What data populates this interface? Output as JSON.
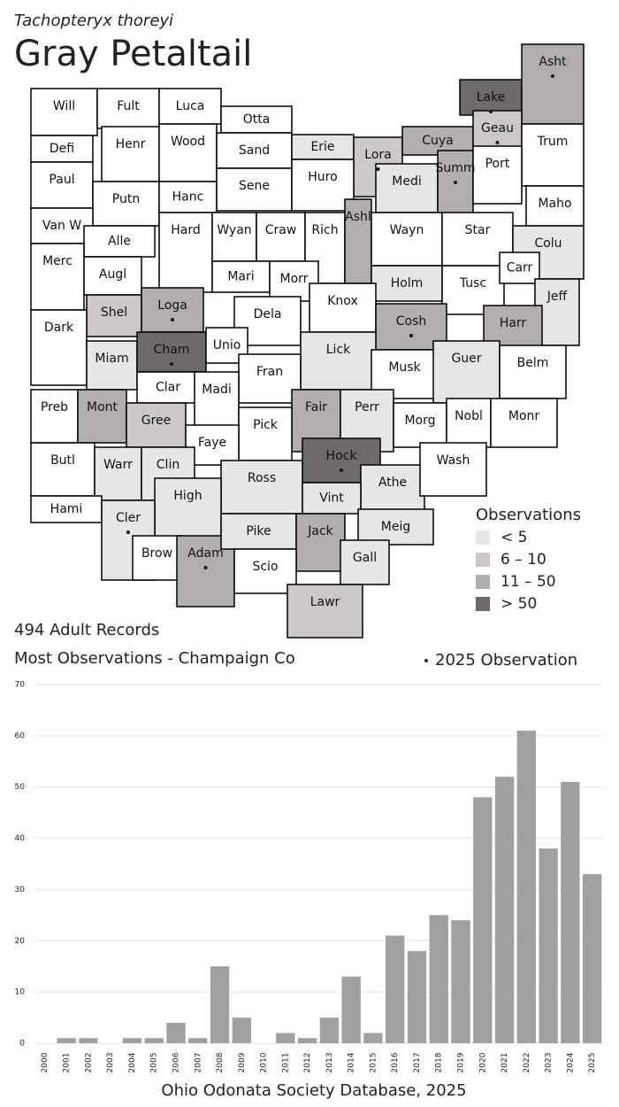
{
  "header": {
    "species": "Tachopteryx thoreyi",
    "title": "Gray Petaltail"
  },
  "map": {
    "counties": [
      {
        "name": "Will",
        "level": null,
        "recent": false
      },
      {
        "name": "Fult",
        "level": null,
        "recent": false
      },
      {
        "name": "Luca",
        "level": null,
        "recent": false
      },
      {
        "name": "Otta",
        "level": null,
        "recent": false
      },
      {
        "name": "Defi",
        "level": null,
        "recent": false
      },
      {
        "name": "Henr",
        "level": null,
        "recent": false
      },
      {
        "name": "Wood",
        "level": null,
        "recent": false
      },
      {
        "name": "Sand",
        "level": null,
        "recent": false
      },
      {
        "name": "Erie",
        "level": 0,
        "recent": false
      },
      {
        "name": "Lora",
        "level": 1,
        "recent": true
      },
      {
        "name": "Cuya",
        "level": 2,
        "recent": false
      },
      {
        "name": "Lake",
        "level": 3,
        "recent": true
      },
      {
        "name": "Asht",
        "level": 2,
        "recent": true
      },
      {
        "name": "Geau",
        "level": 1,
        "recent": true
      },
      {
        "name": "Trum",
        "level": null,
        "recent": false
      },
      {
        "name": "Paul",
        "level": null,
        "recent": false
      },
      {
        "name": "Putn",
        "level": null,
        "recent": false
      },
      {
        "name": "Hanc",
        "level": null,
        "recent": false
      },
      {
        "name": "Sene",
        "level": null,
        "recent": false
      },
      {
        "name": "Huro",
        "level": null,
        "recent": false
      },
      {
        "name": "Medi",
        "level": 0,
        "recent": false
      },
      {
        "name": "Summ",
        "level": 2,
        "recent": true
      },
      {
        "name": "Port",
        "level": null,
        "recent": false
      },
      {
        "name": "Maho",
        "level": null,
        "recent": false
      },
      {
        "name": "Van W",
        "level": null,
        "recent": false
      },
      {
        "name": "Alle",
        "level": null,
        "recent": false
      },
      {
        "name": "Hard",
        "level": null,
        "recent": false
      },
      {
        "name": "Wyan",
        "level": null,
        "recent": false
      },
      {
        "name": "Craw",
        "level": null,
        "recent": false
      },
      {
        "name": "Rich",
        "level": null,
        "recent": false
      },
      {
        "name": "Ashl",
        "level": 2,
        "recent": false
      },
      {
        "name": "Wayn",
        "level": null,
        "recent": false
      },
      {
        "name": "Star",
        "level": null,
        "recent": false
      },
      {
        "name": "Colu",
        "level": 0,
        "recent": false
      },
      {
        "name": "Merc",
        "level": null,
        "recent": false
      },
      {
        "name": "Augl",
        "level": null,
        "recent": false
      },
      {
        "name": "Mari",
        "level": null,
        "recent": false
      },
      {
        "name": "Morr",
        "level": null,
        "recent": false
      },
      {
        "name": "Holm",
        "level": 0,
        "recent": false
      },
      {
        "name": "Tusc",
        "level": null,
        "recent": false
      },
      {
        "name": "Carr",
        "level": null,
        "recent": false
      },
      {
        "name": "Jeff",
        "level": 0,
        "recent": false
      },
      {
        "name": "Shel",
        "level": 1,
        "recent": false
      },
      {
        "name": "Loga",
        "level": 2,
        "recent": true
      },
      {
        "name": "Dela",
        "level": null,
        "recent": false
      },
      {
        "name": "Knox",
        "level": null,
        "recent": false
      },
      {
        "name": "Cosh",
        "level": 2,
        "recent": true
      },
      {
        "name": "Harr",
        "level": 2,
        "recent": false
      },
      {
        "name": "Dark",
        "level": null,
        "recent": false
      },
      {
        "name": "Miam",
        "level": 0,
        "recent": false
      },
      {
        "name": "Cham",
        "level": 3,
        "recent": true
      },
      {
        "name": "Unio",
        "level": null,
        "recent": false
      },
      {
        "name": "Lick",
        "level": 0,
        "recent": false
      },
      {
        "name": "Musk",
        "level": null,
        "recent": false
      },
      {
        "name": "Guer",
        "level": 0,
        "recent": false
      },
      {
        "name": "Belm",
        "level": null,
        "recent": false
      },
      {
        "name": "Clar",
        "level": null,
        "recent": false
      },
      {
        "name": "Fran",
        "level": null,
        "recent": false
      },
      {
        "name": "Madi",
        "level": null,
        "recent": false
      },
      {
        "name": "Preb",
        "level": null,
        "recent": false
      },
      {
        "name": "Mont",
        "level": 2,
        "recent": false
      },
      {
        "name": "Gree",
        "level": 1,
        "recent": false
      },
      {
        "name": "Fair",
        "level": 2,
        "recent": false
      },
      {
        "name": "Perr",
        "level": 0,
        "recent": false
      },
      {
        "name": "Morg",
        "level": null,
        "recent": false
      },
      {
        "name": "Nobl",
        "level": null,
        "recent": false
      },
      {
        "name": "Monr",
        "level": null,
        "recent": false
      },
      {
        "name": "Pick",
        "level": null,
        "recent": false
      },
      {
        "name": "Faye",
        "level": null,
        "recent": false
      },
      {
        "name": "Butl",
        "level": null,
        "recent": false
      },
      {
        "name": "Warr",
        "level": 0,
        "recent": false
      },
      {
        "name": "Clin",
        "level": 0,
        "recent": false
      },
      {
        "name": "Hock",
        "level": 3,
        "recent": true
      },
      {
        "name": "Athe",
        "level": 0,
        "recent": false
      },
      {
        "name": "Wash",
        "level": null,
        "recent": false
      },
      {
        "name": "Ross",
        "level": 0,
        "recent": false
      },
      {
        "name": "High",
        "level": 0,
        "recent": false
      },
      {
        "name": "Vint",
        "level": 0,
        "recent": false
      },
      {
        "name": "Hami",
        "level": null,
        "recent": false
      },
      {
        "name": "Cler",
        "level": 0,
        "recent": true
      },
      {
        "name": "Brow",
        "level": null,
        "recent": false
      },
      {
        "name": "Adam",
        "level": 2,
        "recent": true
      },
      {
        "name": "Pike",
        "level": 0,
        "recent": false
      },
      {
        "name": "Jack",
        "level": 2,
        "recent": false
      },
      {
        "name": "Meig",
        "level": 0,
        "recent": false
      },
      {
        "name": "Scio",
        "level": null,
        "recent": false
      },
      {
        "name": "Gall",
        "level": 0,
        "recent": false
      },
      {
        "name": "Lawr",
        "level": 1,
        "recent": false
      }
    ],
    "legend": {
      "title": "Observations",
      "classes": [
        {
          "label": "< 5",
          "color": "#e6e6e6"
        },
        {
          "label": "6 – 10",
          "color": "#ccc8c8"
        },
        {
          "label": "11 – 50",
          "color": "#b3aeae"
        },
        {
          "label": "> 50",
          "color": "#6e6a6b"
        }
      ],
      "dot_label": "2025  Observation"
    }
  },
  "summary": {
    "records": "494 Adult Records",
    "most": "Most Observations - Champaign Co"
  },
  "chart_data": {
    "type": "bar",
    "color": "#a0a0a0",
    "grid": true,
    "categories": [
      "2000",
      "2001",
      "2002",
      "2003",
      "2004",
      "2005",
      "2006",
      "2007",
      "2008",
      "2009",
      "2010",
      "2011",
      "2012",
      "2013",
      "2014",
      "2015",
      "2016",
      "2017",
      "2018",
      "2019",
      "2020",
      "2021",
      "2022",
      "2023",
      "2024",
      "2025"
    ],
    "values": [
      0,
      1,
      1,
      0,
      1,
      1,
      4,
      1,
      15,
      5,
      0,
      2,
      1,
      5,
      13,
      2,
      21,
      18,
      25,
      24,
      48,
      52,
      61,
      38,
      51,
      33
    ],
    "ylim": [
      0,
      70
    ],
    "yticks": [
      0,
      10,
      20,
      30,
      40,
      50,
      60,
      70
    ],
    "xlabel": "Ohio Odonata Society Database, 2025"
  }
}
